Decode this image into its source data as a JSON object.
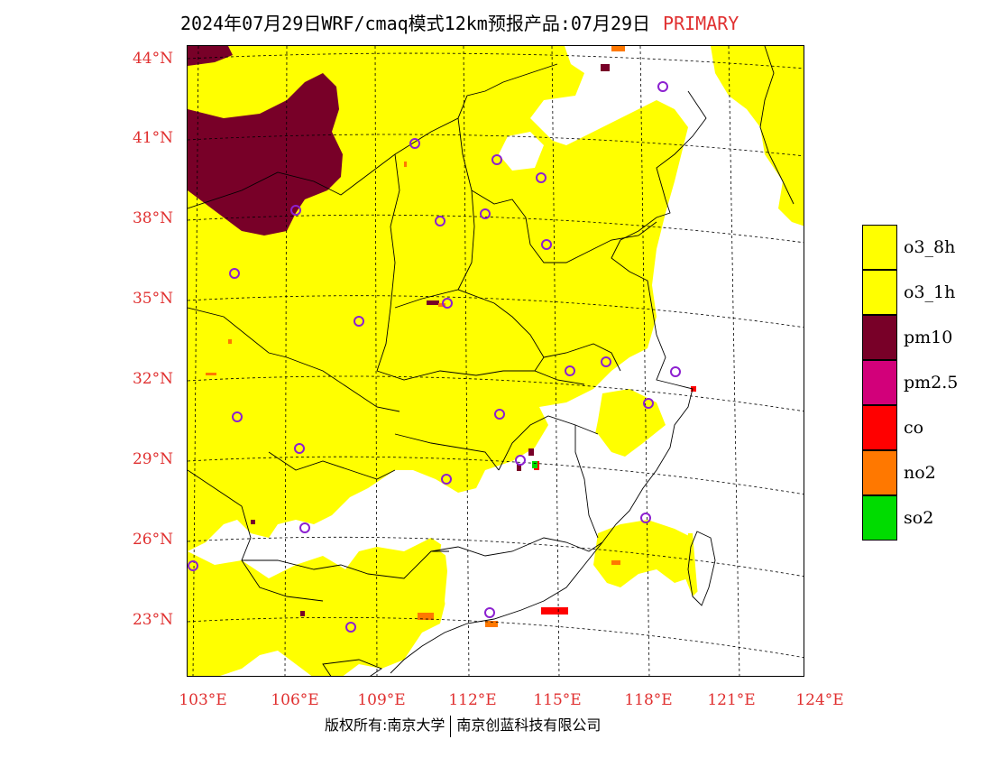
{
  "header": {
    "title": "2024年07月29日WRF/cmaq模式12km预报产品:07月29日",
    "tag": "PRIMARY"
  },
  "map": {
    "lat_labels": [
      "44°N",
      "41°N",
      "38°N",
      "35°N",
      "32°N",
      "29°N",
      "26°N",
      "23°N"
    ],
    "lon_labels": [
      "103°E",
      "106°E",
      "109°E",
      "112°E",
      "115°E",
      "118°E",
      "121°E",
      "124°E"
    ],
    "extent": {
      "lon_min": 102.8,
      "lon_max": 124,
      "lat_min": 21,
      "lat_max": 44.5
    },
    "colors": {
      "o3_8h": "#ffff00",
      "pm10": "#780028",
      "pm2_5": "#d2007a",
      "co": "#ff0000",
      "no2": "#ff7800",
      "so2": "#00dc00",
      "station_marker": "#8c20d0",
      "label_red": "#e03030"
    }
  },
  "legend": {
    "items": [
      {
        "label": "o3_8h",
        "color": "#ffff00"
      },
      {
        "label": "o3_1h",
        "color": "#ffff00"
      },
      {
        "label": "pm10",
        "color": "#780028"
      },
      {
        "label": "pm2.5",
        "color": "#d2007a"
      },
      {
        "label": "co",
        "color": "#ff0000"
      },
      {
        "label": "no2",
        "color": "#ff7800"
      },
      {
        "label": "so2",
        "color": "#00dc00"
      }
    ]
  },
  "footer": {
    "left": "版权所有:南京大学",
    "right": "南京创蓝科技有限公司"
  }
}
